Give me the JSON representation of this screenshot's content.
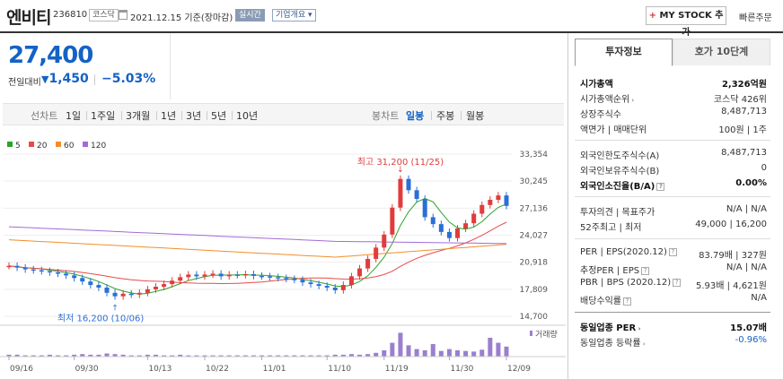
{
  "header": {
    "name": "엔비티",
    "code": "236810",
    "market": "코스닥",
    "date": "2021.12.15 기준(장마감)",
    "realtime": "실시간",
    "company_info": "기업개요",
    "mystock_label": "MY STOCK 추가",
    "quick_order": "빠른주문"
  },
  "price": {
    "current": "27,400",
    "change_label": "전일대비",
    "change_value": "1,450",
    "change_pct": "−5.03%"
  },
  "period_tabs": {
    "label": "선차트",
    "items": [
      "1일",
      "1주일",
      "3개월",
      "1년",
      "3년",
      "5년",
      "10년"
    ]
  },
  "candle_tabs": {
    "label": "봉차트",
    "items": [
      "일봉",
      "주봉",
      "월봉"
    ],
    "active": "일봉"
  },
  "chart_data": {
    "type": "candlestick",
    "legend": [
      {
        "name": "5",
        "color": "#29a329"
      },
      {
        "name": "20",
        "color": "#e84a4a"
      },
      {
        "name": "60",
        "color": "#f28e2b"
      },
      {
        "name": "120",
        "color": "#a26bd6"
      }
    ],
    "y_ticks": [
      "33,354",
      "30,245",
      "27,136",
      "24,027",
      "20,918",
      "17,809",
      "14,700"
    ],
    "ylim": [
      14700,
      33354
    ],
    "x_ticks": [
      "09/16",
      "09/30",
      "10/13",
      "10/22",
      "11/01",
      "11/10",
      "11/19",
      "11/30",
      "12/09"
    ],
    "volume_label": "거래량",
    "high_annotation": "최고 31,200 (11/25)",
    "low_annotation": "최저 16,200 (10/06)",
    "up_color": "#e23b3b",
    "down_color": "#2a6fd6"
  },
  "right_tabs": {
    "active": "투자정보",
    "inactive": "호가 10단계"
  },
  "invest": {
    "market_cap_label": "시가총액",
    "market_cap_value": "2,326억원",
    "cap_rank_label": "시가총액순위",
    "cap_rank_value": "코스닥 426위",
    "shares_label": "상장주식수",
    "shares_value": "8,487,713",
    "par_label": "액면가 | 매매단위",
    "par_value": "100원 | 1주",
    "foreign_limit_label": "외국인한도주식수(A)",
    "foreign_limit_value": "8,487,713",
    "foreign_hold_label": "외국인보유주식수(B)",
    "foreign_hold_value": "0",
    "foreign_ratio_label": "외국인소진율(B/A)",
    "foreign_ratio_value": "0.00%",
    "opinion_label": "투자의견 | 목표주가",
    "opinion_value": "N/A | N/A",
    "week52_label": "52주최고 | 최저",
    "week52_value": "49,000 | 16,200",
    "per_label": "PER | EPS(2020.12)",
    "per_value": "83.79배 | 327원",
    "est_per_label": "추정PER | EPS",
    "est_per_value": "N/A | N/A",
    "pbr_label": "PBR | BPS (2020.12)",
    "pbr_value": "5.93배 | 4,621원",
    "div_label": "배당수익률",
    "div_value": "N/A",
    "ind_per_label": "동일업종 PER",
    "ind_per_value": "15.07배",
    "ind_rate_label": "동일업종 등락률",
    "ind_rate_value": "-0.96%"
  }
}
